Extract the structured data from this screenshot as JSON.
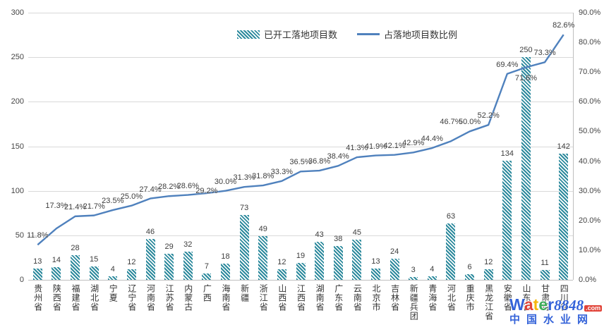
{
  "legend": {
    "bars_label": "已开工落地项目数",
    "line_label": "占落地项目数比例"
  },
  "watermark": {
    "letters": [
      "W",
      "a",
      "t",
      "e",
      "r"
    ],
    "letter_colors": [
      "#2a5bd7",
      "#e03a2f",
      "#f5b400",
      "#34a853",
      "#2a5bd7"
    ],
    "number": "8848",
    "tld": ".com",
    "site": "中国水业网",
    "blue": "#2a5bd7",
    "red": "#e03a2f"
  },
  "chart_data": {
    "type": "bar",
    "subtype": "bar+line combo, dual axis",
    "categories": [
      "贵州省",
      "陕西省",
      "福建省",
      "湖北省",
      "宁夏",
      "辽宁省",
      "河南省",
      "江苏省",
      "内蒙古",
      "广西",
      "海南省",
      "新疆",
      "浙江省",
      "山西省",
      "江西省",
      "湖南省",
      "广东省",
      "云南省",
      "北京市",
      "吉林省",
      "新疆兵团",
      "青海省",
      "河北省",
      "重庆市",
      "黑龙江省",
      "安徽省",
      "山东省",
      "甘肃省",
      "四川省"
    ],
    "series": [
      {
        "name": "已开工落地项目数",
        "type": "bar",
        "axis": "left",
        "values": [
          13,
          14,
          28,
          15,
          4,
          12,
          46,
          29,
          32,
          7,
          18,
          73,
          49,
          12,
          19,
          43,
          38,
          45,
          13,
          24,
          3,
          4,
          63,
          6,
          12,
          134,
          250,
          11,
          142
        ]
      },
      {
        "name": "占落地项目数比例",
        "type": "line",
        "axis": "right",
        "values": [
          11.8,
          17.3,
          21.4,
          21.7,
          23.5,
          25.0,
          27.4,
          28.2,
          28.6,
          29.2,
          30.0,
          31.3,
          31.8,
          33.3,
          36.5,
          36.8,
          38.4,
          41.3,
          41.9,
          42.1,
          42.9,
          44.4,
          46.7,
          50.0,
          52.2,
          69.4,
          71.6,
          73.3,
          82.6
        ],
        "labels": [
          "11.8%",
          "17.3%",
          "21.4%",
          "21.7%",
          "23.5%",
          "25.0%",
          "27.4%",
          "28.2%",
          "28.6%",
          "29.2%",
          "30.0%",
          "31.3%",
          "31.8%",
          "33.3%",
          "36.5%",
          "36.8%",
          "38.4%",
          "41.3%",
          "41.9%",
          "42.1%",
          "42.9%",
          "44.4%",
          "46.7%",
          "50.0%",
          "52.2%",
          "69.4%",
          "71.6%",
          "73.3%",
          "82.6%"
        ]
      }
    ],
    "left_axis": {
      "ticks": [
        "300",
        "250",
        "200",
        "150",
        "100",
        "50",
        "0"
      ],
      "min": 0,
      "max": 300
    },
    "right_axis": {
      "ticks": [
        "90.0%",
        "80.0%",
        "70.0%",
        "60.0%",
        "50.0%",
        "40.0%",
        "30.0%",
        "20.0%",
        "10.0%",
        "0.0%"
      ],
      "min": 0,
      "max": 90
    },
    "grid": true,
    "legend_position": "top-center",
    "colors": {
      "bar": "#2d8a9d",
      "line": "#4f81bd",
      "grid": "#d9d9d9",
      "axis_line": "#bfbfbf",
      "text": "#3d3d3d"
    }
  }
}
